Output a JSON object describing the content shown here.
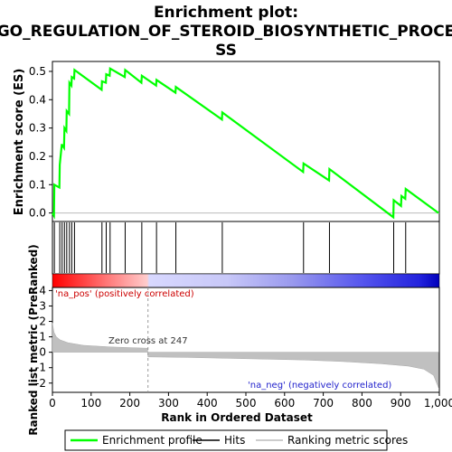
{
  "title_lines": [
    "Enrichment plot:",
    "GO_REGULATION_OF_STEROID_BIOSYNTHETIC_PROCE",
    "SS"
  ],
  "chart_data": {
    "type": "line",
    "xlabel": "Rank in Ordered Dataset",
    "es_panel": {
      "ylabel": "Enrichment score (ES)",
      "ylim": [
        -0.03,
        0.535
      ],
      "yticks": [
        "0.0",
        "0.1",
        "0.2",
        "0.3",
        "0.4",
        "0.5"
      ],
      "ytick_values": [
        0.0,
        0.1,
        0.2,
        0.3,
        0.4,
        0.5
      ],
      "series": [
        {
          "name": "Enrichment profile",
          "color": "#00ff00",
          "x": [
            0,
            4,
            5,
            18,
            19,
            24,
            25,
            30,
            31,
            36,
            37,
            43,
            44,
            49,
            50,
            56,
            57,
            127,
            128,
            138,
            139,
            148,
            149,
            187,
            188,
            230,
            231,
            268,
            269,
            318,
            319,
            438,
            439,
            648,
            649,
            715,
            716,
            881,
            882,
            901,
            902,
            912,
            913,
            998
          ],
          "y": [
            0.0,
            -0.01,
            0.1,
            0.09,
            0.17,
            0.24,
            0.24,
            0.23,
            0.3,
            0.29,
            0.36,
            0.35,
            0.46,
            0.45,
            0.48,
            0.475,
            0.505,
            0.435,
            0.465,
            0.46,
            0.49,
            0.485,
            0.51,
            0.48,
            0.505,
            0.46,
            0.485,
            0.45,
            0.47,
            0.425,
            0.445,
            0.33,
            0.355,
            0.145,
            0.175,
            0.115,
            0.155,
            -0.015,
            0.045,
            0.025,
            0.06,
            0.05,
            0.085,
            0.0
          ]
        }
      ]
    },
    "hits": {
      "name": "Hits",
      "positions": [
        5,
        19,
        25,
        31,
        37,
        44,
        50,
        57,
        128,
        139,
        149,
        188,
        231,
        269,
        319,
        439,
        649,
        716,
        882,
        913
      ]
    },
    "metric_panel": {
      "ylabel": "Ranked list metric (PreRanked)",
      "ylim": [
        -2.6,
        4.2
      ],
      "yticks": [
        "4",
        "3",
        "2",
        "1",
        "0",
        "-1",
        "-2"
      ],
      "ytick_values": [
        4,
        3,
        2,
        1,
        0,
        -1,
        -2
      ],
      "series_name": "Ranking metric scores",
      "zero_cross": 247,
      "profile": [
        [
          0,
          1.9
        ],
        [
          4,
          1.3
        ],
        [
          10,
          1.0
        ],
        [
          20,
          0.8
        ],
        [
          40,
          0.62
        ],
        [
          80,
          0.45
        ],
        [
          150,
          0.34
        ],
        [
          246,
          0.26
        ],
        [
          247,
          -0.3
        ],
        [
          350,
          -0.34
        ],
        [
          500,
          -0.42
        ],
        [
          650,
          -0.5
        ],
        [
          750,
          -0.6
        ],
        [
          850,
          -0.75
        ],
        [
          920,
          -0.9
        ],
        [
          960,
          -1.1
        ],
        [
          985,
          -1.5
        ],
        [
          998,
          -2.3
        ]
      ]
    },
    "xticks": [
      "0",
      "100",
      "200",
      "300",
      "400",
      "500",
      "600",
      "700",
      "800",
      "900",
      "1,000"
    ],
    "xtick_values": [
      0,
      100,
      200,
      300,
      400,
      500,
      600,
      700,
      800,
      900,
      1000
    ],
    "xlim": [
      0,
      1000
    ],
    "annotations": {
      "positive": "'na_pos' (positively correlated)",
      "negative": "'na_neg' (negatively correlated)",
      "zero_cross": "Zero cross at 247"
    },
    "legend": [
      {
        "label": "Enrichment profile",
        "color": "#00ff00"
      },
      {
        "label": "Hits",
        "color": "#000000"
      },
      {
        "label": "Ranking metric scores",
        "color": "#bbbbbb"
      }
    ],
    "colors": {
      "enrichment": "#00ff00",
      "hits": "#000000",
      "metric_fill": "#c0c0c0",
      "pos": "#ff0000",
      "neg": "#0000ff",
      "frame": "#000000"
    }
  }
}
